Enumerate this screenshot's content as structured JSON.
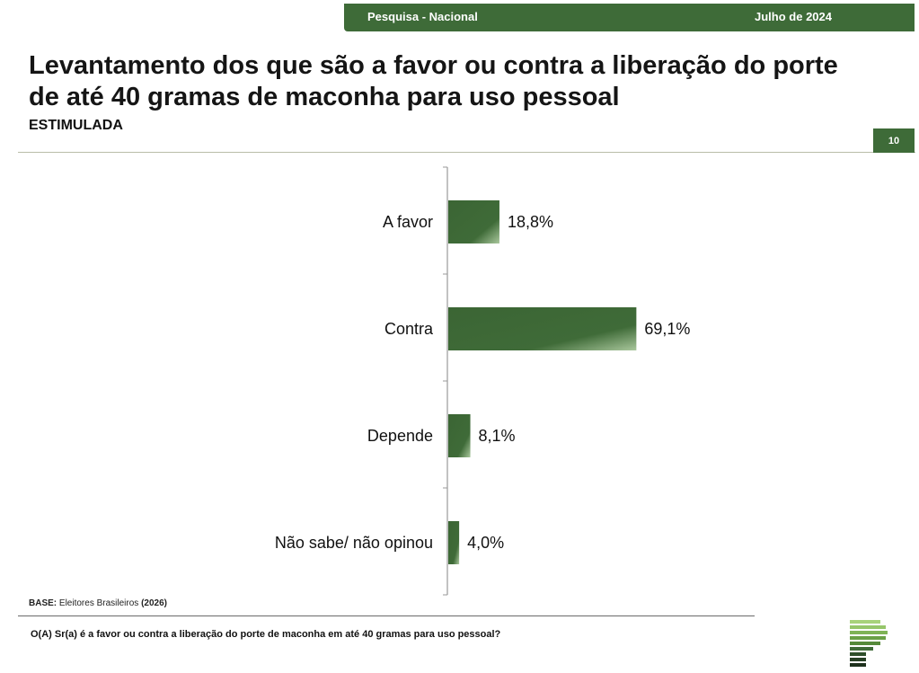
{
  "header": {
    "left": "Pesquisa - Nacional",
    "right": "Julho de 2024",
    "color": "#3e6b38"
  },
  "title": "Levantamento dos que são a favor ou contra a liberação do porte de até 40 gramas de maconha para uso pessoal",
  "subtitle": "ESTIMULADA",
  "page_number": "10",
  "chart_data": {
    "type": "bar",
    "orientation": "horizontal",
    "categories": [
      "A favor",
      "Contra",
      "Depende",
      "Não sabe/ não opinou"
    ],
    "values": [
      18.8,
      69.1,
      8.1,
      4.0
    ],
    "value_labels": [
      "18,8%",
      "69,1%",
      "8,1%",
      "4,0%"
    ],
    "unit": "%",
    "xlim": [
      0,
      100
    ],
    "bar_color": "#3e6b38",
    "grid": false,
    "legend": "none"
  },
  "base": {
    "label": "BASE:",
    "text": "Eleitores Brasileiros",
    "year": "(2026)"
  },
  "question": "O(A) Sr(a) é a favor ou contra a liberação do porte de maconha em até 40 gramas para uso pessoal?"
}
